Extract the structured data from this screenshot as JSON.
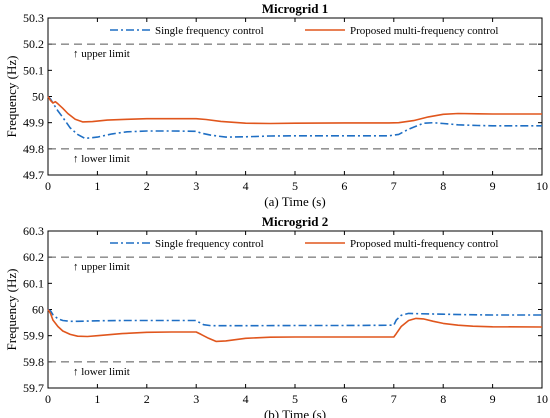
{
  "chart_data": [
    {
      "type": "line",
      "title": "Microgrid 1",
      "xlabel": "(a) Time (s)",
      "ylabel": "Frequency (Hz)",
      "xlim": [
        0,
        10
      ],
      "ylim": [
        49.7,
        50.3
      ],
      "xticks": [
        0,
        1,
        2,
        3,
        4,
        5,
        6,
        7,
        8,
        9,
        10
      ],
      "yticks": [
        49.7,
        49.8,
        49.9,
        50,
        50.1,
        50.2,
        50.3
      ],
      "ytick_labels": [
        "49.7",
        "49.8",
        "49.9",
        "50",
        "50.1",
        "50.2",
        "50.3"
      ],
      "legend_position": "top",
      "grid": false,
      "limits": [
        {
          "name": "upper limit",
          "label": "↑ upper limit",
          "value": 50.2
        },
        {
          "name": "lower limit",
          "label": "↑ lower limit",
          "value": 49.8
        }
      ],
      "series": [
        {
          "name": "Single frequency control",
          "color": "#1f6fc4",
          "dash": "dashdot",
          "x": [
            0,
            0.05,
            0.1,
            0.15,
            0.2,
            0.3,
            0.45,
            0.6,
            0.75,
            1.0,
            1.3,
            1.6,
            2.0,
            2.5,
            3.0,
            3.1,
            3.3,
            3.6,
            4.0,
            4.5,
            5.0,
            6.0,
            6.9,
            7.1,
            7.3,
            7.6,
            7.8,
            8.0,
            8.3,
            8.7,
            9.0,
            10.0
          ],
          "y": [
            50.0,
            49.99,
            49.975,
            49.96,
            49.945,
            49.92,
            49.88,
            49.855,
            49.84,
            49.845,
            49.857,
            49.865,
            49.868,
            49.868,
            49.867,
            49.86,
            49.852,
            49.845,
            49.846,
            49.849,
            49.85,
            49.85,
            49.85,
            49.855,
            49.875,
            49.898,
            49.9,
            49.897,
            49.892,
            49.889,
            49.888,
            49.888
          ]
        },
        {
          "name": "Proposed multi-frequency control",
          "color": "#e0561d",
          "dash": "solid",
          "x": [
            0,
            0.05,
            0.1,
            0.15,
            0.2,
            0.3,
            0.4,
            0.55,
            0.7,
            0.9,
            1.2,
            1.6,
            2.0,
            2.5,
            3.0,
            3.2,
            3.5,
            4.0,
            4.5,
            5.0,
            6.0,
            6.9,
            7.1,
            7.4,
            7.7,
            8.0,
            8.3,
            8.7,
            9.0,
            10.0
          ],
          "y": [
            50.0,
            49.985,
            49.975,
            49.98,
            49.972,
            49.955,
            49.935,
            49.913,
            49.903,
            49.904,
            49.91,
            49.913,
            49.915,
            49.915,
            49.915,
            49.912,
            49.905,
            49.898,
            49.897,
            49.898,
            49.899,
            49.899,
            49.9,
            49.908,
            49.922,
            49.932,
            49.935,
            49.934,
            49.933,
            49.933
          ]
        }
      ]
    },
    {
      "type": "line",
      "title": "Microgrid 2",
      "xlabel": "(b) Time (s)",
      "ylabel": "Frequency (Hz)",
      "xlim": [
        0,
        10
      ],
      "ylim": [
        59.7,
        60.3
      ],
      "xticks": [
        0,
        1,
        2,
        3,
        4,
        5,
        6,
        7,
        8,
        9,
        10
      ],
      "yticks": [
        59.7,
        59.8,
        59.9,
        60,
        60.1,
        60.2,
        60.3
      ],
      "ytick_labels": [
        "59.7",
        "59.8",
        "59.9",
        "60",
        "60.1",
        "60.2",
        "60.3"
      ],
      "legend_position": "top",
      "grid": false,
      "limits": [
        {
          "name": "upper limit",
          "label": "↑ upper limit",
          "value": 60.2
        },
        {
          "name": "lower limit",
          "label": "↑ lower limit",
          "value": 59.8
        }
      ],
      "series": [
        {
          "name": "Single frequency control",
          "color": "#1f6fc4",
          "dash": "dashdot",
          "x": [
            0,
            0.05,
            0.1,
            0.2,
            0.3,
            0.45,
            0.6,
            1.0,
            1.5,
            2.0,
            2.5,
            3.0,
            3.05,
            3.15,
            3.3,
            3.6,
            4.0,
            5.0,
            6.0,
            7.0,
            7.05,
            7.15,
            7.3,
            7.5,
            8.0,
            8.5,
            9.0,
            10.0
          ],
          "y": [
            60.0,
            59.995,
            59.98,
            59.965,
            59.958,
            59.955,
            59.955,
            59.957,
            59.958,
            59.958,
            59.958,
            59.958,
            59.952,
            59.942,
            59.938,
            59.938,
            59.938,
            59.939,
            59.939,
            59.94,
            59.96,
            59.978,
            59.985,
            59.984,
            59.982,
            59.98,
            59.979,
            59.979
          ]
        },
        {
          "name": "Proposed multi-frequency control",
          "color": "#e0561d",
          "dash": "solid",
          "x": [
            0,
            0.05,
            0.1,
            0.2,
            0.3,
            0.45,
            0.6,
            0.8,
            1.0,
            1.5,
            2.0,
            2.5,
            3.0,
            3.1,
            3.25,
            3.4,
            3.6,
            4.0,
            4.5,
            5.0,
            6.0,
            7.0,
            7.05,
            7.15,
            7.3,
            7.45,
            7.6,
            7.8,
            8.0,
            8.3,
            8.6,
            9.0,
            10.0
          ],
          "y": [
            60.0,
            59.985,
            59.96,
            59.935,
            59.918,
            59.905,
            59.898,
            59.897,
            59.9,
            59.908,
            59.913,
            59.914,
            59.914,
            59.905,
            59.89,
            59.878,
            59.88,
            59.89,
            59.894,
            59.895,
            59.895,
            59.895,
            59.908,
            59.935,
            59.958,
            59.966,
            59.964,
            59.955,
            59.947,
            59.94,
            59.936,
            59.934,
            59.933
          ]
        }
      ]
    }
  ]
}
